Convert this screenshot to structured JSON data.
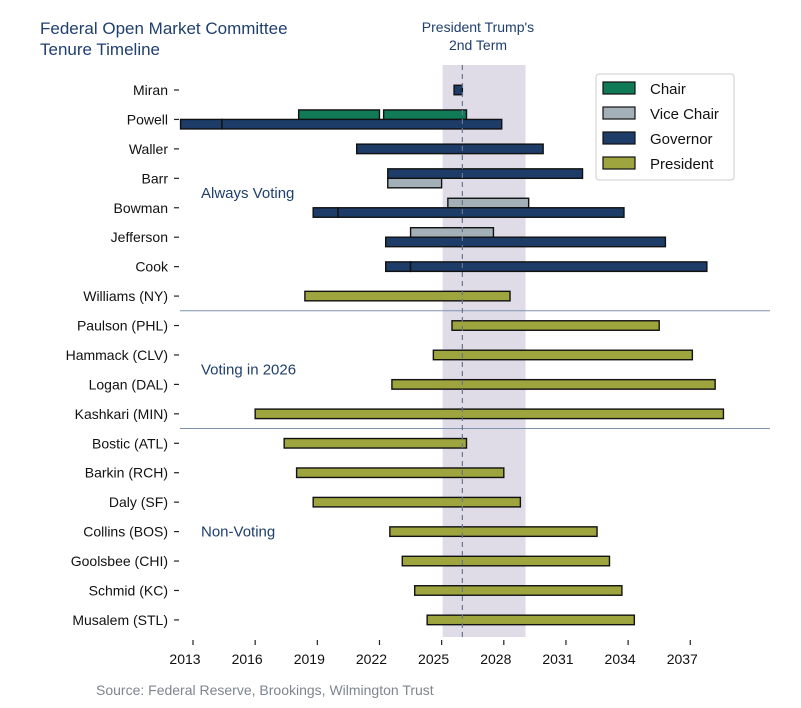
{
  "chart_data": {
    "type": "bar",
    "subtype": "horizontal-timeline",
    "title": "Federal Open Market Committee\nTenure Timeline",
    "source": "Source: Federal Reserve, Brookings, Wilmington Trust",
    "xlim": [
      2012.0,
      2040.5
    ],
    "xticks": [
      2013,
      2016,
      2019,
      2022,
      2025,
      2028,
      2031,
      2034,
      2037
    ],
    "grid": false,
    "legend_placement": "top-right",
    "roles": [
      {
        "key": "chair",
        "label": "Chair",
        "color": "#117a57"
      },
      {
        "key": "vice",
        "label": "Vice Chair",
        "color": "#a3b0b8"
      },
      {
        "key": "governor",
        "label": "Governor",
        "color": "#1d3c68"
      },
      {
        "key": "president",
        "label": "President",
        "color": "#9ea43e"
      }
    ],
    "highlight": {
      "label_line1": "President Trump's",
      "label_line2": "2nd Term",
      "start": 2025.05,
      "end": 2029.05,
      "color": "#d9d6e4"
    },
    "current_marker": 2026.0,
    "groups": [
      {
        "label": "Always Voting",
        "rows": [
          "Miran",
          "Powell",
          "Waller",
          "Barr",
          "Bowman",
          "Jefferson",
          "Cook",
          "Williams (NY)"
        ]
      },
      {
        "label": "Voting in 2026",
        "rows": [
          "Paulson (PHL)",
          "Hammack (CLV)",
          "Logan (DAL)",
          "Kashkari (MIN)"
        ]
      },
      {
        "label": "Non-Voting",
        "rows": [
          "Bostic (ATL)",
          "Barkin (RCH)",
          "Daly (SF)",
          "Collins (BOS)",
          "Goolsbee (CHI)",
          "Schmid (KC)",
          "Musalem (STL)"
        ]
      }
    ],
    "members": [
      {
        "name": "Miran",
        "segments": [
          {
            "role": "governor",
            "start": 2025.6,
            "end": 2026.0
          }
        ]
      },
      {
        "name": "Powell",
        "segments": [
          {
            "role": "chair",
            "start": 2018.1,
            "end": 2022.0
          },
          {
            "role": "chair",
            "start": 2022.2,
            "end": 2026.2
          },
          {
            "role": "governor",
            "start": 2012.4,
            "end": 2014.4
          },
          {
            "role": "governor",
            "start": 2014.4,
            "end": 2027.9
          }
        ]
      },
      {
        "name": "Waller",
        "segments": [
          {
            "role": "governor",
            "start": 2020.9,
            "end": 2029.9
          }
        ]
      },
      {
        "name": "Barr",
        "segments": [
          {
            "role": "governor",
            "start": 2022.4,
            "end": 2031.8
          },
          {
            "role": "vice",
            "start": 2022.4,
            "end": 2025.0
          }
        ]
      },
      {
        "name": "Bowman",
        "segments": [
          {
            "role": "vice",
            "start": 2025.3,
            "end": 2029.2
          },
          {
            "role": "governor",
            "start": 2018.8,
            "end": 2020.0
          },
          {
            "role": "governor",
            "start": 2020.0,
            "end": 2033.8
          }
        ]
      },
      {
        "name": "Jefferson",
        "segments": [
          {
            "role": "vice",
            "start": 2023.5,
            "end": 2027.5
          },
          {
            "role": "governor",
            "start": 2022.3,
            "end": 2035.8
          }
        ]
      },
      {
        "name": "Cook",
        "segments": [
          {
            "role": "governor",
            "start": 2022.3,
            "end": 2023.5
          },
          {
            "role": "governor",
            "start": 2023.5,
            "end": 2037.8
          }
        ]
      },
      {
        "name": "Williams (NY)",
        "segments": [
          {
            "role": "president",
            "start": 2018.4,
            "end": 2028.3
          }
        ]
      },
      {
        "name": "Paulson (PHL)",
        "segments": [
          {
            "role": "president",
            "start": 2025.5,
            "end": 2035.5
          }
        ]
      },
      {
        "name": "Hammack (CLV)",
        "segments": [
          {
            "role": "president",
            "start": 2024.6,
            "end": 2037.1
          }
        ]
      },
      {
        "name": "Logan (DAL)",
        "segments": [
          {
            "role": "president",
            "start": 2022.6,
            "end": 2038.2
          }
        ]
      },
      {
        "name": "Kashkari (MIN)",
        "segments": [
          {
            "role": "president",
            "start": 2016.0,
            "end": 2038.6
          }
        ]
      },
      {
        "name": "Bostic (ATL)",
        "segments": [
          {
            "role": "president",
            "start": 2017.4,
            "end": 2026.2
          }
        ]
      },
      {
        "name": "Barkin (RCH)",
        "segments": [
          {
            "role": "president",
            "start": 2018.0,
            "end": 2028.0
          }
        ]
      },
      {
        "name": "Daly (SF)",
        "segments": [
          {
            "role": "president",
            "start": 2018.8,
            "end": 2028.8
          }
        ]
      },
      {
        "name": "Collins (BOS)",
        "segments": [
          {
            "role": "president",
            "start": 2022.5,
            "end": 2032.5
          }
        ]
      },
      {
        "name": "Goolsbee (CHI)",
        "segments": [
          {
            "role": "president",
            "start": 2023.1,
            "end": 2033.1
          }
        ]
      },
      {
        "name": "Schmid (KC)",
        "segments": [
          {
            "role": "president",
            "start": 2023.7,
            "end": 2033.7
          }
        ]
      },
      {
        "name": "Musalem (STL)",
        "segments": [
          {
            "role": "president",
            "start": 2024.3,
            "end": 2034.3
          }
        ]
      }
    ],
    "text_color": "#1f3f6e",
    "separator_color": "#7f93ad"
  }
}
